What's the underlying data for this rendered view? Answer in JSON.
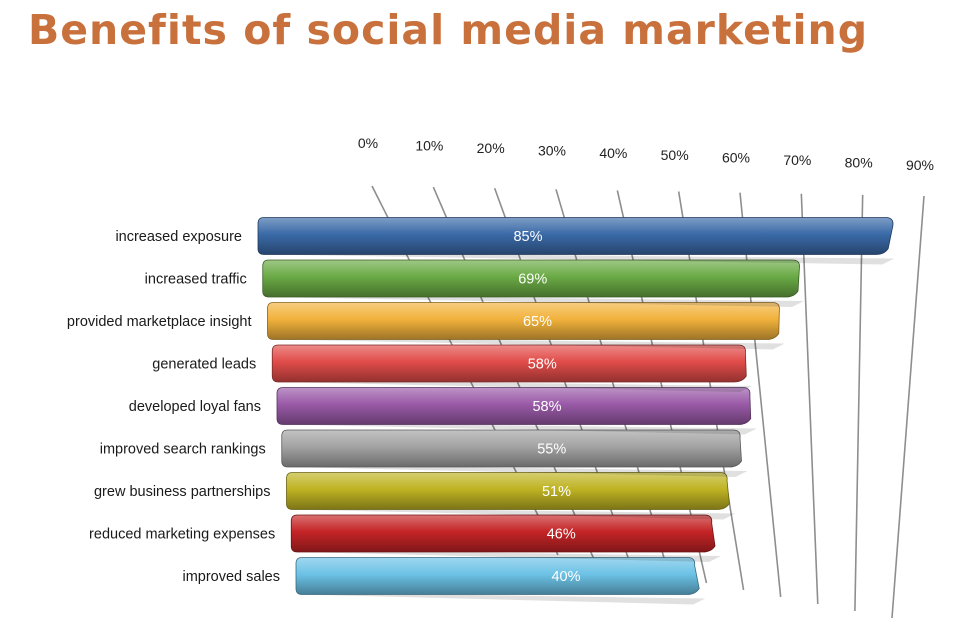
{
  "title": "Benefits of social media marketing",
  "chart_data": {
    "type": "bar",
    "orientation": "horizontal",
    "title": "Benefits of social media marketing",
    "categories": [
      "increased exposure",
      "increased traffic",
      "provided marketplace insight",
      "generated leads",
      "developed loyal fans",
      "improved search rankings",
      "grew business partnerships",
      "reduced marketing expenses",
      "improved sales"
    ],
    "values": [
      85,
      69,
      65,
      58,
      58,
      55,
      51,
      46,
      40
    ],
    "value_labels": [
      "85%",
      "69%",
      "65%",
      "58%",
      "58%",
      "55%",
      "51%",
      "46%",
      "40%"
    ],
    "bar_colors": [
      "#3a6aa8",
      "#6aaa45",
      "#f2b23c",
      "#e14c49",
      "#9a5aa8",
      "#a3a3a3",
      "#bfb323",
      "#c52426",
      "#6cc2e6"
    ],
    "x_ticks": [
      "0%",
      "10%",
      "20%",
      "30%",
      "40%",
      "50%",
      "60%",
      "70%",
      "80%",
      "90%"
    ],
    "xlim": [
      0,
      90
    ],
    "axis_position": "top",
    "grid": true,
    "legend": "none"
  }
}
